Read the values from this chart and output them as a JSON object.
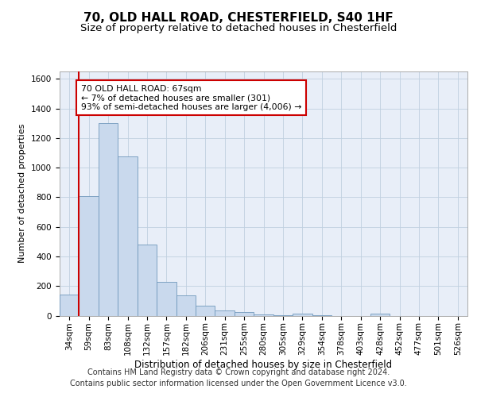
{
  "title1": "70, OLD HALL ROAD, CHESTERFIELD, S40 1HF",
  "title2": "Size of property relative to detached houses in Chesterfield",
  "xlabel": "Distribution of detached houses by size in Chesterfield",
  "ylabel": "Number of detached properties",
  "categories": [
    "34sqm",
    "59sqm",
    "83sqm",
    "108sqm",
    "132sqm",
    "157sqm",
    "182sqm",
    "206sqm",
    "231sqm",
    "255sqm",
    "280sqm",
    "305sqm",
    "329sqm",
    "354sqm",
    "378sqm",
    "403sqm",
    "428sqm",
    "452sqm",
    "477sqm",
    "501sqm",
    "526sqm"
  ],
  "values": [
    140,
    810,
    1300,
    1075,
    480,
    230,
    135,
    65,
    35,
    22,
    10,
    5,
    15,
    2,
    0,
    0,
    12,
    0,
    0,
    0,
    0
  ],
  "bar_color": "#c9d9ed",
  "bar_edge_color": "#7098bc",
  "vline_color": "#cc0000",
  "annotation_text": "70 OLD HALL ROAD: 67sqm\n← 7% of detached houses are smaller (301)\n93% of semi-detached houses are larger (4,006) →",
  "annotation_box_color": "#ffffff",
  "annotation_box_edge": "#cc0000",
  "ylim": [
    0,
    1650
  ],
  "yticks": [
    0,
    200,
    400,
    600,
    800,
    1000,
    1200,
    1400,
    1600
  ],
  "grid_color": "#c0d0e0",
  "background_color": "#e8eef8",
  "footer_line1": "Contains HM Land Registry data © Crown copyright and database right 2024.",
  "footer_line2": "Contains public sector information licensed under the Open Government Licence v3.0.",
  "title1_fontsize": 11,
  "title2_fontsize": 9.5,
  "xlabel_fontsize": 8.5,
  "ylabel_fontsize": 8,
  "tick_fontsize": 7.5,
  "footer_fontsize": 7
}
